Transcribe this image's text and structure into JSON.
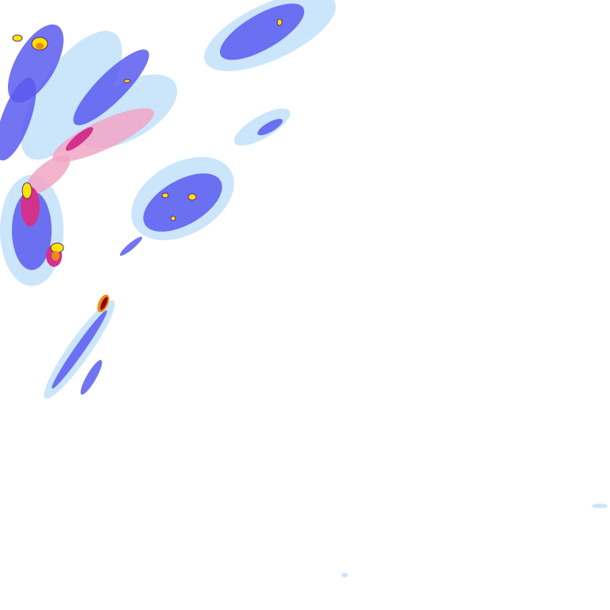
{
  "map": {
    "layer": "precipitation-radar",
    "colors": {
      "light": "#c6e2fb",
      "moderate": "#5b5cf0",
      "heavy_pink": "#f2a6c4",
      "heavy_magenta": "#d2328c",
      "intense_yellow": "#ffe200",
      "intense_orange": "#f08a10",
      "extreme_red": "#8a0a0a",
      "background": "#ffffff"
    }
  }
}
